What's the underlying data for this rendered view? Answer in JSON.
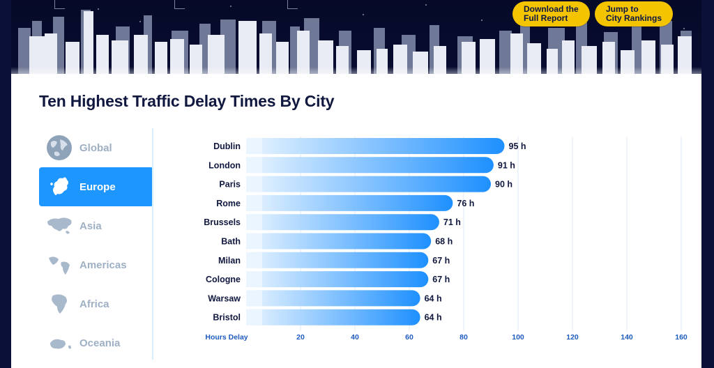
{
  "header": {
    "buttons": [
      {
        "line1": "Download the",
        "line2": "Full Report"
      },
      {
        "line1": "Jump to",
        "line2": "City Rankings"
      }
    ]
  },
  "title": "Ten Highest Traffic Delay Times By City",
  "regions": [
    {
      "label": "Global",
      "icon": "globe-icon",
      "active": false
    },
    {
      "label": "Europe",
      "icon": "europe-map-icon",
      "active": true
    },
    {
      "label": "Asia",
      "icon": "asia-map-icon",
      "active": false
    },
    {
      "label": "Americas",
      "icon": "americas-map-icon",
      "active": false
    },
    {
      "label": "Africa",
      "icon": "africa-map-icon",
      "active": false
    },
    {
      "label": "Oceania",
      "icon": "oceania-map-icon",
      "active": false
    }
  ],
  "colors": {
    "accent": "#1e96ff",
    "button": "#f5c400",
    "bar_start": "#eaf5ff",
    "bar_end": "#1e90ff",
    "text": "#10183f",
    "inactive": "#9fb0c4"
  },
  "chart_data": {
    "type": "bar",
    "orientation": "horizontal",
    "categories": [
      "Dublin",
      "London",
      "Paris",
      "Rome",
      "Brussels",
      "Bath",
      "Milan",
      "Cologne",
      "Warsaw",
      "Bristol"
    ],
    "values": [
      95,
      91,
      90,
      76,
      71,
      68,
      67,
      67,
      64,
      64
    ],
    "value_labels": [
      "95 h",
      "91 h",
      "90 h",
      "76 h",
      "71 h",
      "68 h",
      "67 h",
      "67 h",
      "64 h",
      "64 h"
    ],
    "xlabel": "Hours Delay",
    "xticks": [
      20,
      40,
      60,
      80,
      100,
      120,
      140,
      160
    ],
    "xlim": [
      0,
      160
    ],
    "grid": true
  }
}
